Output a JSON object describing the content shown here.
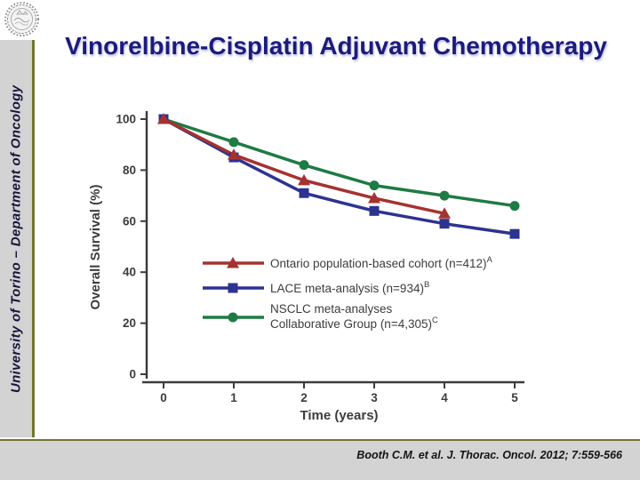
{
  "title": "Vinorelbine-Cisplatin Adjuvant Chemotherapy",
  "sidebar": {
    "text": "University of Torino – Department of Oncology"
  },
  "footer": {
    "citation": "Booth C.M. et al. J. Thorac. Oncol. 2012; 7:559-566"
  },
  "logo": {
    "name": "university-seal"
  },
  "colors": {
    "accent_olive": "#727630",
    "panel_gray": "#D3D3D3",
    "title_navy": "#1B1B7E",
    "axis": "#3C3C3C",
    "series_red": "#A5322F",
    "series_blue": "#2D3391",
    "series_green": "#1E7B44"
  },
  "chart_data": {
    "type": "line",
    "title": "",
    "xlabel": "Time (years)",
    "ylabel": "Overall Survival (%)",
    "xticks": [
      0,
      1,
      2,
      3,
      4,
      5
    ],
    "yticks": [
      0,
      20,
      40,
      60,
      80,
      100
    ],
    "xlim": [
      0,
      5
    ],
    "ylim": [
      0,
      100
    ],
    "grid": false,
    "legend_position": "inside-lower-left",
    "series": [
      {
        "name": "Ontario population-based cohort (n=412)",
        "label_lines": [
          "Ontario population-based cohort (n=412)"
        ],
        "superscript": "A",
        "marker": "triangle",
        "color": "#A5322F",
        "x": [
          0,
          1,
          2,
          3,
          4
        ],
        "values": [
          100,
          86,
          76,
          69,
          63
        ]
      },
      {
        "name": "LACE meta-analysis (n=934)",
        "label_lines": [
          "LACE meta-analysis (n=934)"
        ],
        "superscript": "B",
        "marker": "square",
        "color": "#2D3391",
        "x": [
          0,
          1,
          2,
          3,
          4,
          5
        ],
        "values": [
          100,
          85,
          71,
          64,
          59,
          55
        ]
      },
      {
        "name": "NSCLC meta-analyses Collaborative Group (n=4,305)",
        "label_lines": [
          "NSCLC meta-analyses",
          "Collaborative Group (n=4,305)"
        ],
        "superscript": "C",
        "marker": "circle",
        "color": "#1E7B44",
        "x": [
          0,
          1,
          2,
          3,
          4,
          5
        ],
        "values": [
          100,
          91,
          82,
          74,
          70,
          66
        ]
      }
    ]
  }
}
